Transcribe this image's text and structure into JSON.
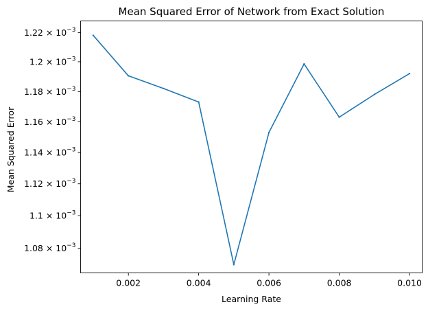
{
  "chart_data": {
    "type": "line",
    "title": "Mean Squared Error of Network from Exact Solution",
    "xlabel": "Learning Rate",
    "ylabel": "Mean Squared Error",
    "xlim": [
      0.00064,
      0.01036
    ],
    "ylim": [
      0.001065,
      0.001228
    ],
    "yscale": "log",
    "grid": false,
    "x_ticks": [
      {
        "value": 0.002,
        "label": "0.002"
      },
      {
        "value": 0.004,
        "label": "0.004"
      },
      {
        "value": 0.006,
        "label": "0.006"
      },
      {
        "value": 0.008,
        "label": "0.008"
      },
      {
        "value": 0.01,
        "label": "0.010"
      }
    ],
    "y_ticks": [
      {
        "value": 0.00108,
        "mantissa": "1.08",
        "times": "×",
        "base": "10",
        "exponent": "−3"
      },
      {
        "value": 0.0011,
        "mantissa": "1.1",
        "times": "×",
        "base": "10",
        "exponent": "−3"
      },
      {
        "value": 0.00112,
        "mantissa": "1.12",
        "times": "×",
        "base": "10",
        "exponent": "−3"
      },
      {
        "value": 0.00114,
        "mantissa": "1.14",
        "times": "×",
        "base": "10",
        "exponent": "−3"
      },
      {
        "value": 0.00116,
        "mantissa": "1.16",
        "times": "×",
        "base": "10",
        "exponent": "−3"
      },
      {
        "value": 0.00118,
        "mantissa": "1.18",
        "times": "×",
        "base": "10",
        "exponent": "−3"
      },
      {
        "value": 0.0012,
        "mantissa": "1.2",
        "times": "×",
        "base": "10",
        "exponent": "−3"
      },
      {
        "value": 0.00122,
        "mantissa": "1.22",
        "times": "×",
        "base": "10",
        "exponent": "−3"
      }
    ],
    "series": [
      {
        "color": "#1f77b4",
        "x": [
          0.001,
          0.002,
          0.003,
          0.004,
          0.005,
          0.006,
          0.007,
          0.008,
          0.009,
          0.01
        ],
        "y": [
          0.001218,
          0.0011905,
          0.001182,
          0.001173,
          0.00107,
          0.001153,
          0.0011985,
          0.001163,
          0.001178,
          0.001192
        ]
      }
    ]
  }
}
